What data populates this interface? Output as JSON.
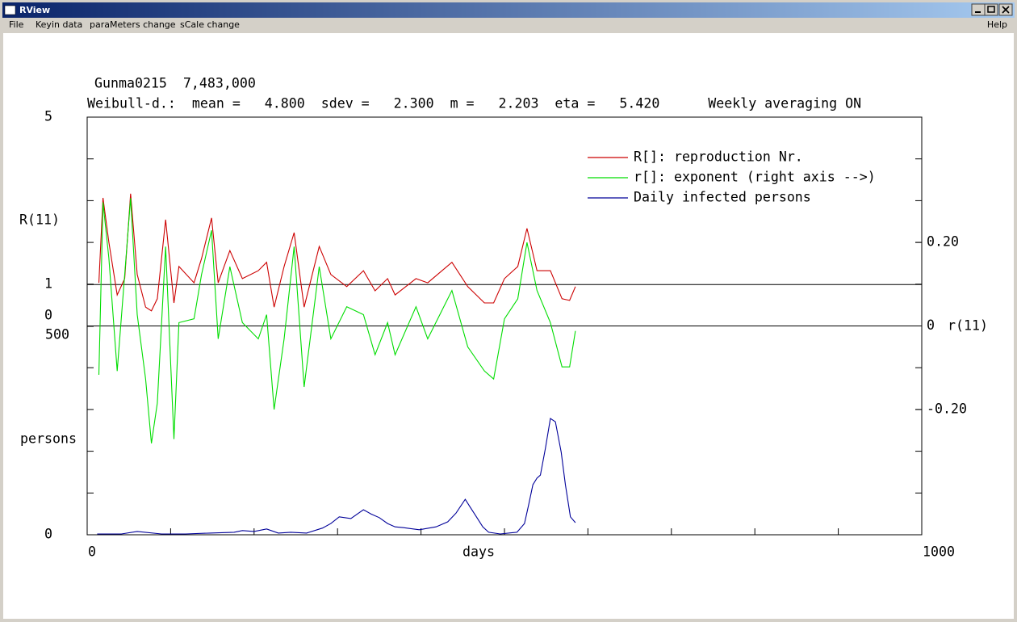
{
  "window": {
    "title": "RView"
  },
  "menu": [
    "File",
    "Keyin data",
    "paraMeters change",
    "sCale change"
  ],
  "help": "Help",
  "chart_data": {
    "type": "line",
    "title": "Gunma0215  7,483,000",
    "subtitle": "Weibull-d.:  mean =   4.800  sdev =   2.300  m =   2.203  eta =   5.420      Weekly averaging ON",
    "xlabel": "days",
    "xlim": [
      0,
      1000
    ],
    "xticks": [
      0,
      1000
    ],
    "axes": {
      "R": {
        "label": "R(11)",
        "lim": [
          0,
          5
        ],
        "ticks": [
          0,
          1,
          5
        ]
      },
      "persons": {
        "label": "persons",
        "lim": [
          0,
          500
        ],
        "ticks": [
          0,
          500
        ]
      },
      "r": {
        "label": "r(11)",
        "lim": [
          -0.5,
          0.5
        ],
        "ticks": [
          {
            "value": -0.2,
            "label": "-0.20"
          },
          0,
          {
            "value": 0.2,
            "label": "0.20"
          }
        ]
      }
    },
    "reference_lines": [
      {
        "axis": "R",
        "value": 1
      },
      {
        "axis": "r",
        "value": 0
      }
    ],
    "series": [
      {
        "name": "R[]: reproduction Nr.",
        "color": "#cc0000",
        "axis": "R",
        "x": [
          14,
          19,
          26,
          36,
          45,
          52,
          60,
          70,
          77,
          84,
          94,
          104,
          110,
          128,
          137,
          149,
          157,
          171,
          186,
          205,
          215,
          224,
          236,
          248,
          260,
          278,
          292,
          311,
          331,
          345,
          360,
          369,
          394,
          408,
          437,
          456,
          476,
          487,
          500,
          516,
          527,
          539,
          555,
          569,
          578,
          585
        ],
        "values": [
          1.04,
          3.07,
          2.01,
          0.75,
          1.14,
          3.17,
          1.24,
          0.46,
          0.37,
          0.66,
          2.55,
          0.56,
          1.43,
          1.04,
          1.62,
          2.59,
          1.04,
          1.81,
          1.14,
          1.33,
          1.53,
          0.46,
          1.43,
          2.24,
          0.46,
          1.91,
          1.24,
          0.95,
          1.33,
          0.85,
          1.14,
          0.75,
          1.14,
          1.04,
          1.53,
          0.95,
          0.56,
          0.56,
          1.14,
          1.43,
          2.34,
          1.33,
          1.33,
          0.66,
          0.62,
          0.95
        ]
      },
      {
        "name": "r[]: exponent (right axis -->)",
        "color": "#00dd00",
        "axis": "r",
        "x": [
          14,
          19,
          26,
          36,
          45,
          52,
          60,
          70,
          77,
          84,
          94,
          104,
          110,
          128,
          137,
          149,
          157,
          171,
          186,
          205,
          215,
          224,
          236,
          248,
          260,
          278,
          292,
          311,
          331,
          345,
          360,
          369,
          394,
          408,
          437,
          456,
          476,
          487,
          500,
          516,
          527,
          539,
          555,
          569,
          578,
          585
        ],
        "values": [
          -0.117,
          0.296,
          0.162,
          -0.108,
          0.123,
          0.306,
          0.027,
          -0.127,
          -0.281,
          -0.185,
          0.19,
          -0.271,
          0.008,
          0.017,
          0.123,
          0.229,
          -0.031,
          0.142,
          0.008,
          -0.031,
          0.027,
          -0.2,
          -0.031,
          0.19,
          -0.146,
          0.142,
          -0.031,
          0.046,
          0.027,
          -0.069,
          0.008,
          -0.069,
          0.046,
          -0.031,
          0.085,
          -0.05,
          -0.108,
          -0.127,
          0.017,
          0.065,
          0.2,
          0.085,
          0.008,
          -0.098,
          -0.098,
          -0.012
        ]
      },
      {
        "name": "Daily infected persons",
        "color": "#000099",
        "axis": "persons",
        "x": [
          12,
          41,
          60,
          89,
          118,
          147,
          176,
          186,
          200,
          215,
          229,
          244,
          263,
          282,
          292,
          302,
          316,
          331,
          340,
          350,
          360,
          369,
          379,
          398,
          418,
          432,
          442,
          453,
          459,
          467,
          474,
          481,
          495,
          515,
          524,
          529,
          534,
          539,
          543,
          549,
          555,
          561,
          568,
          573,
          579,
          585
        ],
        "values": [
          2,
          2,
          8,
          2,
          2,
          4,
          6,
          10,
          8,
          14,
          4,
          6,
          4,
          16,
          27,
          43,
          39,
          60,
          50,
          41,
          27,
          19,
          17,
          12,
          19,
          31,
          52,
          85,
          66,
          41,
          19,
          6,
          2,
          6,
          27,
          72,
          120,
          136,
          143,
          207,
          279,
          271,
          198,
          120,
          43,
          29
        ]
      }
    ]
  }
}
